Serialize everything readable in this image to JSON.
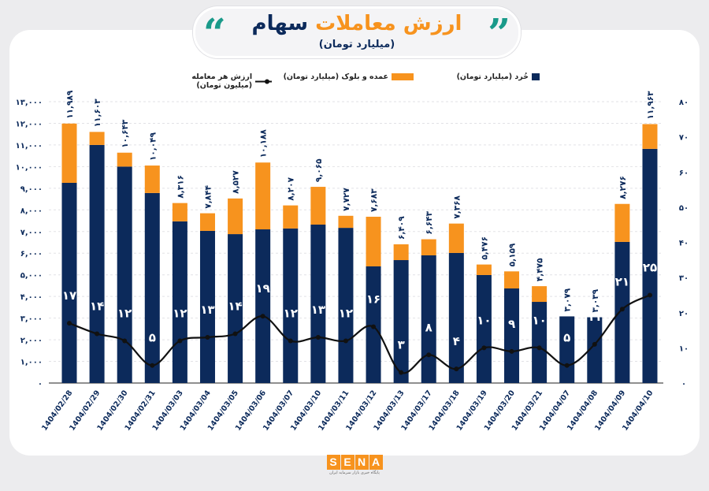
{
  "header": {
    "title_part1": "ارزش معاملات",
    "title_part2": "سهام",
    "subtitle": "(میلیارد تومان)"
  },
  "legend": {
    "retail": "خُرد (میلیارد تومان)",
    "block": "عمده و بلوک (میلیارد تومان)",
    "per_trade": "ارزش هر معامله (میلیون تومان)"
  },
  "logo": {
    "text": "SENA",
    "tagline": "پایگاه خبری بازار سرمایه ایران"
  },
  "colors": {
    "retail": "#0c2a5b",
    "block": "#f7931e",
    "line": "#111111",
    "title_orange": "#f7931e",
    "title_navy": "#0c2a5b",
    "quote": "#1a9a8a"
  },
  "chart_data": {
    "type": "bar",
    "stacked": true,
    "categories": [
      "1404/02/28",
      "1404/02/29",
      "1404/02/30",
      "1404/02/31",
      "1404/03/03",
      "1404/03/04",
      "1404/03/05",
      "1404/03/06",
      "1404/03/07",
      "1404/03/10",
      "1404/03/11",
      "1404/03/12",
      "1404/03/13",
      "1404/03/17",
      "1404/03/18",
      "1404/03/19",
      "1404/03/20",
      "1404/03/21",
      "1404/04/07",
      "1404/04/08",
      "1404/04/09",
      "1404/04/10"
    ],
    "series": [
      {
        "name": "خُرد (میلیارد تومان)",
        "axis": "left",
        "values": [
          9250,
          11000,
          10000,
          8780,
          7470,
          7030,
          6880,
          7100,
          7140,
          7320,
          7170,
          5390,
          5680,
          5900,
          6010,
          4990,
          4370,
          3750,
          3079,
          3039,
          6520,
          10820
        ]
      },
      {
        "name": "عمده و بلوک (میلیارد تومان)",
        "axis": "left",
        "values": [
          2739,
          603,
          643,
          1269,
          846,
          814,
          1647,
          3088,
          1067,
          1745,
          557,
          2293,
          729,
          743,
          1358,
          486,
          789,
          725,
          0,
          0,
          1756,
          1143
        ]
      },
      {
        "name": "ارزش هر معامله (میلیون تومان)",
        "type": "line",
        "axis": "right",
        "values": [
          17,
          14,
          12,
          5,
          12,
          13,
          14,
          19,
          12,
          13,
          12,
          16,
          3,
          8,
          4,
          10,
          9,
          10,
          5,
          11,
          21,
          25
        ]
      }
    ],
    "totals": [
      11989,
      11603,
      10643,
      10049,
      8316,
      7844,
      8527,
      10188,
      8207,
      9065,
      7727,
      7683,
      6409,
      6643,
      7368,
      5476,
      5159,
      4475,
      3079,
      3039,
      8276,
      11963
    ],
    "y_left": {
      "range": [
        0,
        13000
      ],
      "ticks": [
        "۰",
        "۱,۰۰۰",
        "۲,۰۰۰",
        "۳,۰۰۰",
        "۴,۰۰۰",
        "۵,۰۰۰",
        "۶,۰۰۰",
        "۷,۰۰۰",
        "۸,۰۰۰",
        "۹,۰۰۰",
        "۱۰,۰۰۰",
        "۱۱,۰۰۰",
        "۱۲,۰۰۰",
        "۱۳,۰۰۰"
      ]
    },
    "y_right": {
      "range": [
        0,
        80
      ],
      "ticks": [
        "۰",
        "۱۰",
        "۲۰",
        "۳۰",
        "۴۰",
        "۵۰",
        "۶۰",
        "۷۰",
        "۸۰"
      ]
    },
    "grid": true,
    "legend_position": "top"
  }
}
